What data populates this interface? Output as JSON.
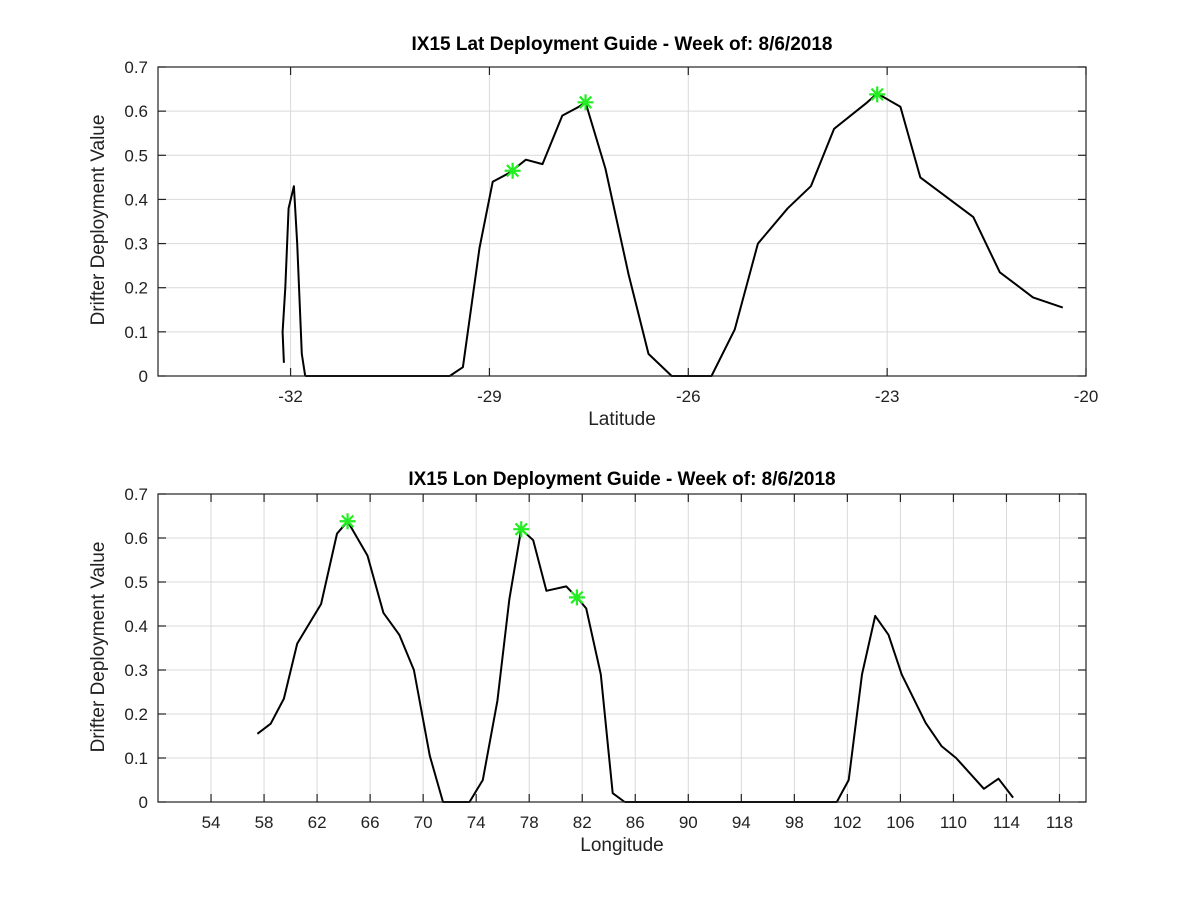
{
  "colors": {
    "line": "#000000",
    "marker": "#22ee22",
    "grid": "#d9d9d9"
  },
  "chart_data": [
    {
      "type": "line",
      "title": "IX15 Lat Deployment Guide - Week of: 8/6/2018",
      "xlabel": "Latitude",
      "ylabel": "Drifter Deployment Value",
      "xlim": [
        -34,
        -20
      ],
      "ylim": [
        0,
        0.7
      ],
      "xticks": [
        -32,
        -29,
        -26,
        -23,
        -20
      ],
      "xtick_labels": [
        "-32",
        "-29",
        "-26",
        "-23",
        "-20"
      ],
      "yticks": [
        0,
        0.1,
        0.2,
        0.3,
        0.4,
        0.5,
        0.6,
        0.7
      ],
      "ytick_labels": [
        "0",
        "0.1",
        "0.2",
        "0.3",
        "0.4",
        "0.5",
        "0.6",
        "0.7"
      ],
      "grid": true,
      "series": [
        {
          "x": [
            -32.1,
            -32.12,
            -32.08,
            -32.03,
            -31.95,
            -31.9,
            -31.83,
            -31.78
          ],
          "y": [
            0.03,
            0.1,
            0.2,
            0.38,
            0.43,
            0.3,
            0.05,
            0.0
          ]
        },
        {
          "x": [
            -31.78,
            -29.6,
            -29.4,
            -29.15,
            -28.95,
            -28.7,
            -28.45,
            -28.2,
            -27.9,
            -27.65,
            -27.55,
            -27.25,
            -26.9,
            -26.6,
            -26.25,
            -26.0,
            -25.65,
            -25.3,
            -24.95,
            -24.5,
            -24.15,
            -23.8,
            -23.3,
            -23.15,
            -22.8,
            -22.5,
            -21.7,
            -21.3,
            -20.8,
            -20.35
          ],
          "y": [
            0.0,
            0.0,
            0.02,
            0.29,
            0.44,
            0.46,
            0.49,
            0.48,
            0.59,
            0.61,
            0.62,
            0.47,
            0.23,
            0.05,
            0.0,
            0.0,
            0.0,
            0.105,
            0.3,
            0.38,
            0.43,
            0.56,
            0.62,
            0.64,
            0.61,
            0.45,
            0.36,
            0.235,
            0.178,
            0.155
          ]
        }
      ],
      "markers": {
        "x": [
          -28.65,
          -27.55,
          -23.15
        ],
        "y": [
          0.465,
          0.62,
          0.638
        ]
      }
    },
    {
      "type": "line",
      "title": "IX15 Lon Deployment Guide - Week of: 8/6/2018",
      "xlabel": "Longitude",
      "ylabel": "Drifter Deployment Value",
      "xlim": [
        50,
        120
      ],
      "ylim": [
        0,
        0.7
      ],
      "xticks": [
        54,
        58,
        62,
        66,
        70,
        74,
        78,
        82,
        86,
        90,
        94,
        98,
        102,
        106,
        110,
        114,
        118
      ],
      "xtick_labels": [
        "54",
        "58",
        "62",
        "66",
        "70",
        "74",
        "78",
        "82",
        "86",
        "90",
        "94",
        "98",
        "102",
        "106",
        "110",
        "114",
        "118"
      ],
      "yticks": [
        0,
        0.1,
        0.2,
        0.3,
        0.4,
        0.5,
        0.6,
        0.7
      ],
      "ytick_labels": [
        "0",
        "0.1",
        "0.2",
        "0.3",
        "0.4",
        "0.5",
        "0.6",
        "0.7"
      ],
      "grid": true,
      "series": [
        {
          "x": [
            57.5,
            58.5,
            59.5,
            60.5,
            62.3,
            63.5,
            64.3,
            65.8,
            67.0,
            68.2,
            69.3,
            70.5,
            71.5,
            73.5,
            74.5,
            75.6,
            76.5,
            77.4,
            78.3,
            79.3,
            80.8,
            81.6,
            82.3,
            83.4,
            84.3,
            85.2
          ],
          "y": [
            0.155,
            0.178,
            0.235,
            0.36,
            0.45,
            0.61,
            0.638,
            0.56,
            0.43,
            0.38,
            0.3,
            0.105,
            0.0,
            0.0,
            0.05,
            0.23,
            0.46,
            0.62,
            0.595,
            0.48,
            0.49,
            0.465,
            0.44,
            0.29,
            0.02,
            0.0
          ]
        },
        {
          "x": [
            85.2,
            101.2,
            102.1,
            103.1,
            104.1,
            105.1,
            106.1,
            107.9,
            109.1,
            110.2,
            112.3,
            113.4,
            114.5
          ],
          "y": [
            0.0,
            0.0,
            0.05,
            0.29,
            0.423,
            0.38,
            0.29,
            0.18,
            0.127,
            0.1,
            0.03,
            0.053,
            0.01
          ]
        }
      ],
      "markers": {
        "x": [
          64.3,
          77.4,
          81.6
        ],
        "y": [
          0.638,
          0.62,
          0.465
        ]
      }
    }
  ]
}
